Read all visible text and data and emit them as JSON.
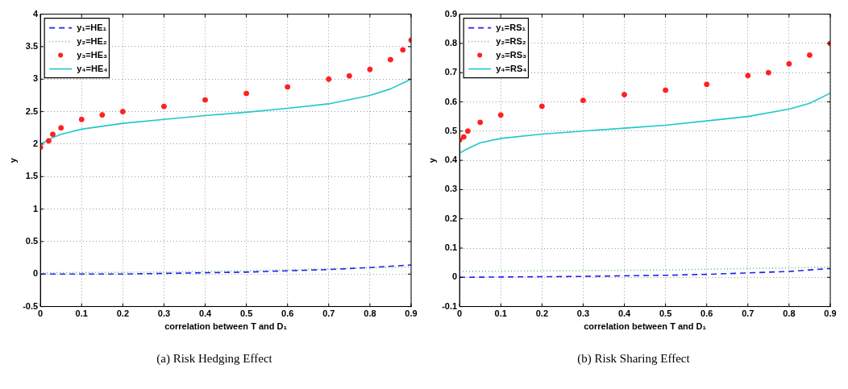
{
  "chart_data": [
    {
      "type": "line",
      "xlabel": "correlation between T and D₁",
      "ylabel": "y",
      "xlim": [
        0,
        0.9
      ],
      "xticks": [
        0,
        0.1,
        0.2,
        0.3,
        0.4,
        0.5,
        0.6,
        0.7,
        0.8,
        0.9
      ],
      "ylim": [
        -0.5,
        4
      ],
      "yticks": [
        -0.5,
        0,
        0.5,
        1,
        1.5,
        2,
        2.5,
        3,
        3.5,
        4
      ],
      "grid": true,
      "legend": "top left",
      "annotations": [
        "(a) Risk Hedging Effect"
      ],
      "series": [
        {
          "name": "y₁=HE₁",
          "color": "#2020f0",
          "line_style": "dashed",
          "marker": "none",
          "x": [
            0,
            0.2,
            0.4,
            0.5,
            0.6,
            0.7,
            0.8,
            0.9
          ],
          "values": [
            0,
            0,
            0.02,
            0.03,
            0.05,
            0.07,
            0.1,
            0.14
          ]
        },
        {
          "name": "y₂=HE₂",
          "color": "#66bb66",
          "line_style": "dotted",
          "marker": "none",
          "x": [
            0,
            0.3,
            0.5,
            0.7,
            0.9
          ],
          "values": [
            0.02,
            0.03,
            0.05,
            0.08,
            0.11
          ]
        },
        {
          "name": "y₃=HE₃",
          "type": "scatter",
          "color": "#ff2020",
          "marker": "circle",
          "x": [
            0,
            0.02,
            0.03,
            0.05,
            0.1,
            0.15,
            0.2,
            0.3,
            0.4,
            0.5,
            0.6,
            0.7,
            0.75,
            0.8,
            0.85,
            0.88,
            0.9
          ],
          "values": [
            1.95,
            2.05,
            2.15,
            2.25,
            2.38,
            2.45,
            2.5,
            2.58,
            2.68,
            2.78,
            2.88,
            3,
            3.05,
            3.15,
            3.3,
            3.45,
            3.6
          ]
        },
        {
          "name": "y₄=HE₄",
          "color": "#20c8c8",
          "line_style": "solid",
          "marker": "none",
          "x": [
            0,
            0.03,
            0.05,
            0.1,
            0.2,
            0.3,
            0.4,
            0.5,
            0.6,
            0.7,
            0.8,
            0.85,
            0.9
          ],
          "values": [
            2,
            2.1,
            2.15,
            2.23,
            2.32,
            2.38,
            2.44,
            2.49,
            2.55,
            2.62,
            2.75,
            2.85,
            3
          ]
        }
      ]
    },
    {
      "type": "line",
      "xlabel": "correlation between T and D₁",
      "ylabel": "y",
      "xlim": [
        0,
        0.9
      ],
      "xticks": [
        0,
        0.1,
        0.2,
        0.3,
        0.4,
        0.5,
        0.6,
        0.7,
        0.8,
        0.9
      ],
      "ylim": [
        -0.1,
        0.9
      ],
      "yticks": [
        -0.1,
        0,
        0.1,
        0.2,
        0.3,
        0.4,
        0.5,
        0.6,
        0.7,
        0.8,
        0.9
      ],
      "grid": true,
      "legend": "top left",
      "annotations": [
        "(b) Risk Sharing Effect"
      ],
      "series": [
        {
          "name": "y₁=RS₁",
          "color": "#2020f0",
          "line_style": "dashed",
          "marker": "none",
          "x": [
            0,
            0.3,
            0.5,
            0.6,
            0.7,
            0.8,
            0.9
          ],
          "values": [
            0,
            0.003,
            0.007,
            0.01,
            0.015,
            0.02,
            0.03
          ]
        },
        {
          "name": "y₂=RS₂",
          "color": "#66bb66",
          "line_style": "dotted",
          "marker": "none",
          "x": [
            0,
            0.5,
            0.9
          ],
          "values": [
            0.02,
            0.025,
            0.035
          ]
        },
        {
          "name": "y₃=RS₃",
          "type": "scatter",
          "color": "#ff2020",
          "marker": "circle",
          "x": [
            0,
            0.01,
            0.02,
            0.05,
            0.1,
            0.2,
            0.3,
            0.4,
            0.5,
            0.6,
            0.7,
            0.75,
            0.8,
            0.85,
            0.9
          ],
          "values": [
            0.47,
            0.48,
            0.5,
            0.53,
            0.555,
            0.585,
            0.605,
            0.625,
            0.64,
            0.66,
            0.69,
            0.7,
            0.73,
            0.76,
            0.8
          ]
        },
        {
          "name": "y₄=RS₄",
          "color": "#20c8c8",
          "line_style": "solid",
          "marker": "none",
          "x": [
            0,
            0.02,
            0.05,
            0.1,
            0.2,
            0.3,
            0.4,
            0.5,
            0.6,
            0.7,
            0.8,
            0.85,
            0.9
          ],
          "values": [
            0.425,
            0.44,
            0.46,
            0.475,
            0.49,
            0.5,
            0.51,
            0.52,
            0.535,
            0.55,
            0.575,
            0.595,
            0.63
          ]
        }
      ]
    }
  ]
}
